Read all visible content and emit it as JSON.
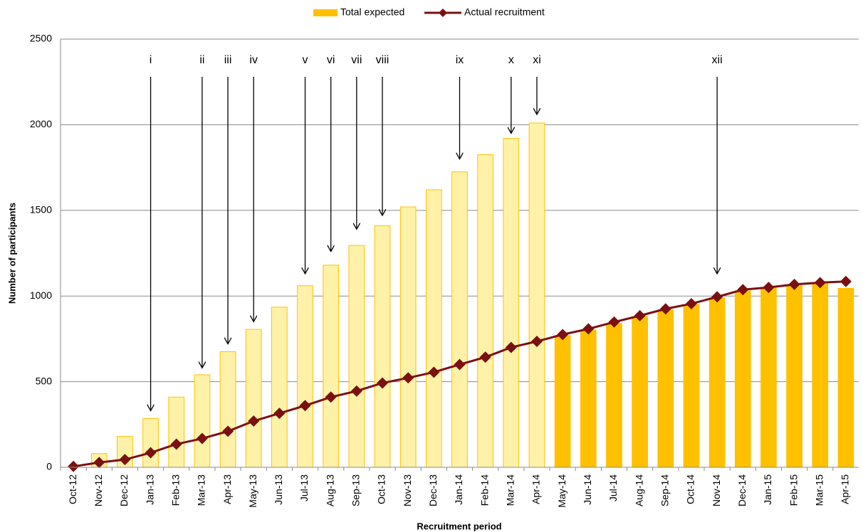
{
  "chart_data": {
    "type": "bar-line",
    "x_label": "Recruitment period",
    "y_label": "Number of participants",
    "categories": [
      "Oct-12",
      "Nov-12",
      "Dec-12",
      "Jan-13",
      "Feb-13",
      "Mar-13",
      "Apr-13",
      "May-13",
      "Jun-13",
      "Jul-13",
      "Aug-13",
      "Sep-13",
      "Oct-13",
      "Nov-13",
      "Dec-13",
      "Jan-14",
      "Feb-14",
      "Mar-14",
      "Apr-14",
      "May-14",
      "Jun-14",
      "Jul-14",
      "Aug-14",
      "Sep-14",
      "Oct-14",
      "Nov-14",
      "Dec-14",
      "Jan-15",
      "Feb-15",
      "Mar-15",
      "Apr-15"
    ],
    "series": [
      {
        "name": "Total expected",
        "kind": "bar",
        "color": "#ffc000",
        "colors": [
          "#fff2a8",
          "#fff2a8",
          "#fff2a8",
          "#fff2a8",
          "#fff2a8",
          "#fff2a8",
          "#fff2a8",
          "#fff2a8",
          "#fff2a8",
          "#fff2a8",
          "#fff2a8",
          "#fff2a8",
          "#fff2a8",
          "#fff2a8",
          "#fff2a8",
          "#fff2a8",
          "#fff2a8",
          "#fff2a8",
          "#fff2a8",
          "#ffc000",
          "#ffc000",
          "#ffc000",
          "#ffc000",
          "#ffc000",
          "#ffc000",
          "#ffc000",
          "#ffc000",
          "#ffc000",
          "#ffc000",
          "#ffc000",
          "#ffc000"
        ],
        "values": [
          0,
          80,
          180,
          285,
          410,
          540,
          675,
          805,
          935,
          1060,
          1180,
          1295,
          1410,
          1520,
          1620,
          1725,
          1825,
          1920,
          2010,
          770,
          800,
          840,
          880,
          920,
          950,
          990,
          1030,
          1045,
          1060,
          1070,
          1045
        ]
      },
      {
        "name": "Actual recruitment",
        "kind": "line",
        "color": "#7b1010",
        "values": [
          5,
          28,
          45,
          85,
          135,
          168,
          210,
          270,
          315,
          360,
          410,
          445,
          492,
          522,
          555,
          600,
          643,
          700,
          735,
          775,
          808,
          848,
          885,
          925,
          955,
          995,
          1037,
          1050,
          1068,
          1078,
          1085
        ]
      }
    ],
    "annotations": [
      {
        "text": "i",
        "category": "Jan-13",
        "y": 330
      },
      {
        "text": "ii",
        "category": "Mar-13",
        "y": 580
      },
      {
        "text": "iii",
        "category": "Apr-13",
        "y": 720
      },
      {
        "text": "iv",
        "category": "May-13",
        "y": 850
      },
      {
        "text": "v",
        "category": "Jul-13",
        "y": 1130
      },
      {
        "text": "vi",
        "category": "Aug-13",
        "y": 1260
      },
      {
        "text": "vii",
        "category": "Sep-13",
        "y": 1390
      },
      {
        "text": "viii",
        "category": "Oct-13",
        "y": 1470
      },
      {
        "text": "ix",
        "category": "Jan-14",
        "y": 1800
      },
      {
        "text": "x",
        "category": "Mar-14",
        "y": 1950
      },
      {
        "text": "xi",
        "category": "Apr-14",
        "y": 2060
      },
      {
        "text": "xii",
        "category": "Nov-14",
        "y": 1130
      }
    ],
    "ylim": [
      0,
      2500
    ],
    "yticks": [
      0,
      500,
      1000,
      1500,
      2000,
      2500
    ],
    "grid": true,
    "legend": "top"
  }
}
